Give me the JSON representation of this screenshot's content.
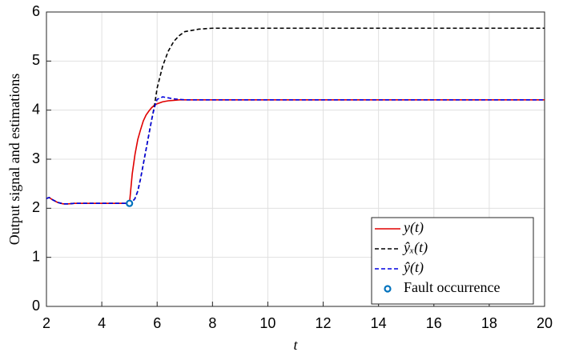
{
  "chart_data": {
    "type": "line",
    "xlabel": "t",
    "ylabel": "Output signal and estimations",
    "x": [
      2,
      2.1,
      2.2,
      2.4,
      2.6,
      2.8,
      3,
      3.5,
      4,
      4.5,
      5,
      5.1,
      5.2,
      5.3,
      5.4,
      5.5,
      5.6,
      5.7,
      5.8,
      5.9,
      6,
      6.2,
      6.4,
      6.6,
      6.8,
      7,
      7.5,
      8,
      9,
      10,
      12,
      14,
      16,
      18,
      20
    ],
    "series": [
      {
        "name": "y(t)",
        "color": "#e00000",
        "dash": false,
        "values": [
          2.2,
          2.22,
          2.18,
          2.12,
          2.09,
          2.09,
          2.1,
          2.1,
          2.1,
          2.1,
          2.1,
          2.7,
          3.1,
          3.4,
          3.6,
          3.78,
          3.9,
          3.98,
          4.05,
          4.1,
          4.13,
          4.17,
          4.19,
          4.2,
          4.21,
          4.21,
          4.21,
          4.21,
          4.21,
          4.21,
          4.21,
          4.21,
          4.21,
          4.21,
          4.21
        ]
      },
      {
        "name": "ŷₓ(t)",
        "color": "#000000",
        "dash": true,
        "values": [
          2.2,
          2.22,
          2.18,
          2.12,
          2.09,
          2.09,
          2.1,
          2.1,
          2.1,
          2.1,
          2.1,
          2.13,
          2.2,
          2.35,
          2.6,
          2.9,
          3.2,
          3.5,
          3.8,
          4.08,
          4.45,
          4.9,
          5.2,
          5.4,
          5.52,
          5.6,
          5.65,
          5.67,
          5.67,
          5.67,
          5.67,
          5.67,
          5.67,
          5.67,
          5.67
        ]
      },
      {
        "name": "ŷ(t)",
        "color": "#0000e0",
        "dash": true,
        "values": [
          2.2,
          2.22,
          2.18,
          2.12,
          2.09,
          2.09,
          2.1,
          2.1,
          2.1,
          2.1,
          2.1,
          2.13,
          2.2,
          2.35,
          2.6,
          2.9,
          3.2,
          3.5,
          3.8,
          4.05,
          4.22,
          4.27,
          4.25,
          4.23,
          4.22,
          4.21,
          4.21,
          4.21,
          4.21,
          4.21,
          4.21,
          4.21,
          4.21,
          4.21,
          4.21
        ]
      },
      {
        "name": "Fault occurrence",
        "color": "#0072bd",
        "marker": "circle",
        "x": [
          5
        ],
        "values": [
          2.1
        ]
      }
    ],
    "xlim": [
      2,
      20
    ],
    "xticks": [
      2,
      4,
      6,
      8,
      10,
      12,
      14,
      16,
      18,
      20
    ],
    "ylim": [
      0,
      6
    ],
    "yticks": [
      0,
      1,
      2,
      3,
      4,
      5,
      6
    ],
    "grid": true,
    "legend": "lower right"
  }
}
